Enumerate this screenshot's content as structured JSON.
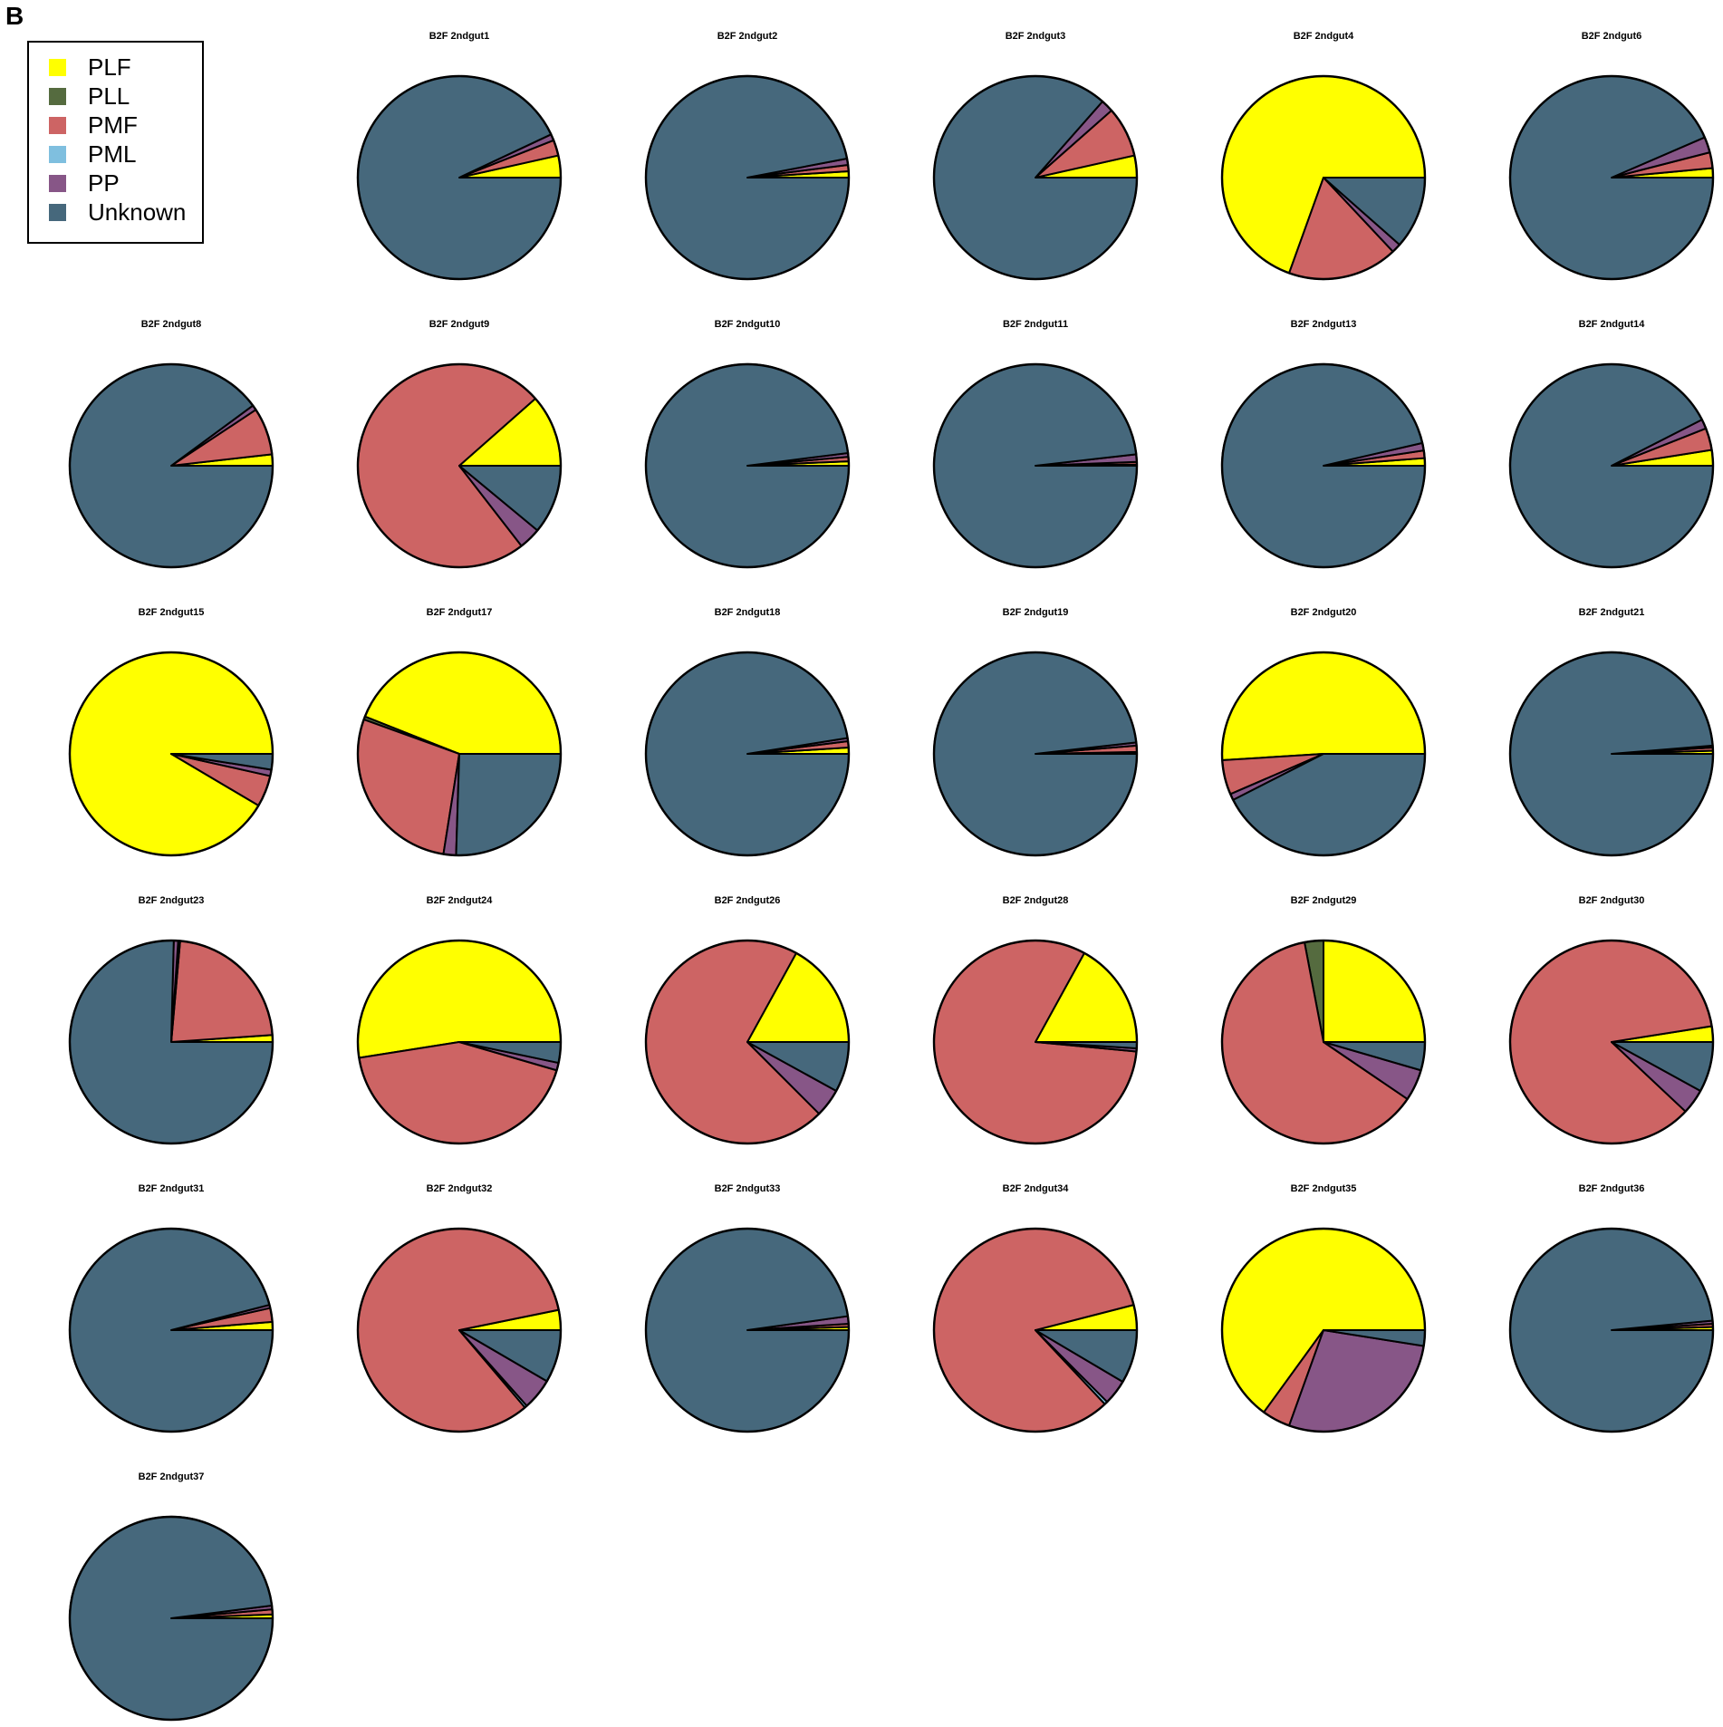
{
  "panel_label": "B",
  "colors": {
    "PLF": "#ffff00",
    "PLL": "#556b3f",
    "PMF": "#cd6464",
    "PML": "#7fbfdf",
    "PP": "#875687",
    "Unknown": "#46687c"
  },
  "chart_data": {
    "type": "pie",
    "title": "",
    "legend": {
      "placement": "top-left",
      "entries": [
        "PLF",
        "PLL",
        "PMF",
        "PML",
        "PP",
        "Unknown"
      ]
    },
    "start_angle_note": "slices start at 3 o'clock and proceed counter-clockwise",
    "categories": [
      "PLF",
      "PLL",
      "PMF",
      "PML",
      "PP",
      "Unknown"
    ],
    "series": [
      {
        "name": "B2F 2ndgut1",
        "values": [
          3.5,
          0,
          2.5,
          0,
          1,
          93
        ]
      },
      {
        "name": "B2F 2ndgut2",
        "values": [
          1,
          0,
          1,
          0,
          1,
          97
        ]
      },
      {
        "name": "B2F 2ndgut3",
        "values": [
          3.5,
          0,
          8,
          0,
          2,
          86.5
        ]
      },
      {
        "name": "B2F 2ndgut4",
        "values": [
          69.5,
          0,
          17.5,
          0,
          1.5,
          11.5
        ]
      },
      {
        "name": "B2F 2ndgut6",
        "values": [
          1.5,
          0,
          2.5,
          0,
          2.5,
          93.5
        ]
      },
      {
        "name": "B2F 2ndgut8",
        "values": [
          1.8,
          0,
          7.5,
          0,
          0.8,
          89.9
        ]
      },
      {
        "name": "B2F 2ndgut9",
        "values": [
          11.5,
          0,
          74,
          0,
          3.5,
          11
        ]
      },
      {
        "name": "B2F 2ndgut10",
        "values": [
          0.7,
          0,
          0.7,
          0,
          0.6,
          98
        ]
      },
      {
        "name": "B2F 2ndgut11",
        "values": [
          0.2,
          0,
          0.4,
          0,
          1.2,
          98.2
        ]
      },
      {
        "name": "B2F 2ndgut13",
        "values": [
          1.2,
          0,
          1.2,
          0,
          1.2,
          96.4
        ]
      },
      {
        "name": "B2F 2ndgut14",
        "values": [
          2.5,
          0,
          3.5,
          0,
          1.5,
          92.5
        ]
      },
      {
        "name": "B2F 2ndgut15",
        "values": [
          91.5,
          0,
          5,
          0,
          1,
          2.5
        ]
      },
      {
        "name": "B2F 2ndgut17",
        "values": [
          44,
          0.5,
          28,
          0,
          2,
          25.5
        ]
      },
      {
        "name": "B2F 2ndgut18",
        "values": [
          1,
          0,
          1,
          0,
          0.5,
          97.5
        ]
      },
      {
        "name": "B2F 2ndgut19",
        "values": [
          0.3,
          0,
          1,
          0,
          0.5,
          98.2
        ]
      },
      {
        "name": "B2F 2ndgut20",
        "values": [
          51,
          0,
          5.5,
          0,
          1,
          42.5
        ]
      },
      {
        "name": "B2F 2ndgut21",
        "values": [
          0.5,
          0,
          0.5,
          0,
          0.3,
          98.7
        ]
      },
      {
        "name": "B2F 2ndgut23",
        "values": [
          1.1,
          0,
          22.5,
          0.3,
          0.7,
          75.4
        ]
      },
      {
        "name": "B2F 2ndgut24",
        "values": [
          52.5,
          0,
          43,
          0,
          1.2,
          3.3
        ]
      },
      {
        "name": "B2F 2ndgut26",
        "values": [
          17,
          0,
          70.5,
          0,
          4.5,
          8
        ]
      },
      {
        "name": "B2F 2ndgut28",
        "values": [
          17,
          0,
          81.5,
          0,
          0.5,
          1
        ]
      },
      {
        "name": "B2F 2ndgut29",
        "values": [
          25,
          3,
          62.5,
          0,
          5,
          4.5
        ]
      },
      {
        "name": "B2F 2ndgut30",
        "values": [
          2.5,
          0,
          85.5,
          0,
          4,
          8
        ]
      },
      {
        "name": "B2F 2ndgut31",
        "values": [
          1.3,
          0,
          2.2,
          0,
          0.5,
          96
        ]
      },
      {
        "name": "B2F 2ndgut32",
        "values": [
          3.2,
          0,
          83,
          0.4,
          5,
          8.4
        ]
      },
      {
        "name": "B2F 2ndgut33",
        "values": [
          0.5,
          0,
          0.5,
          0,
          1.2,
          97.8
        ]
      },
      {
        "name": "B2F 2ndgut34",
        "values": [
          4,
          0,
          83,
          0.5,
          4,
          8.5
        ]
      },
      {
        "name": "B2F 2ndgut35",
        "values": [
          65,
          0,
          4.5,
          0,
          28,
          2.5
        ]
      },
      {
        "name": "B2F 2ndgut36",
        "values": [
          0.5,
          0,
          0.5,
          0,
          0.5,
          98.5
        ]
      },
      {
        "name": "B2F 2ndgut37",
        "values": [
          0.6,
          0,
          0.8,
          0,
          0.6,
          98
        ]
      }
    ]
  }
}
